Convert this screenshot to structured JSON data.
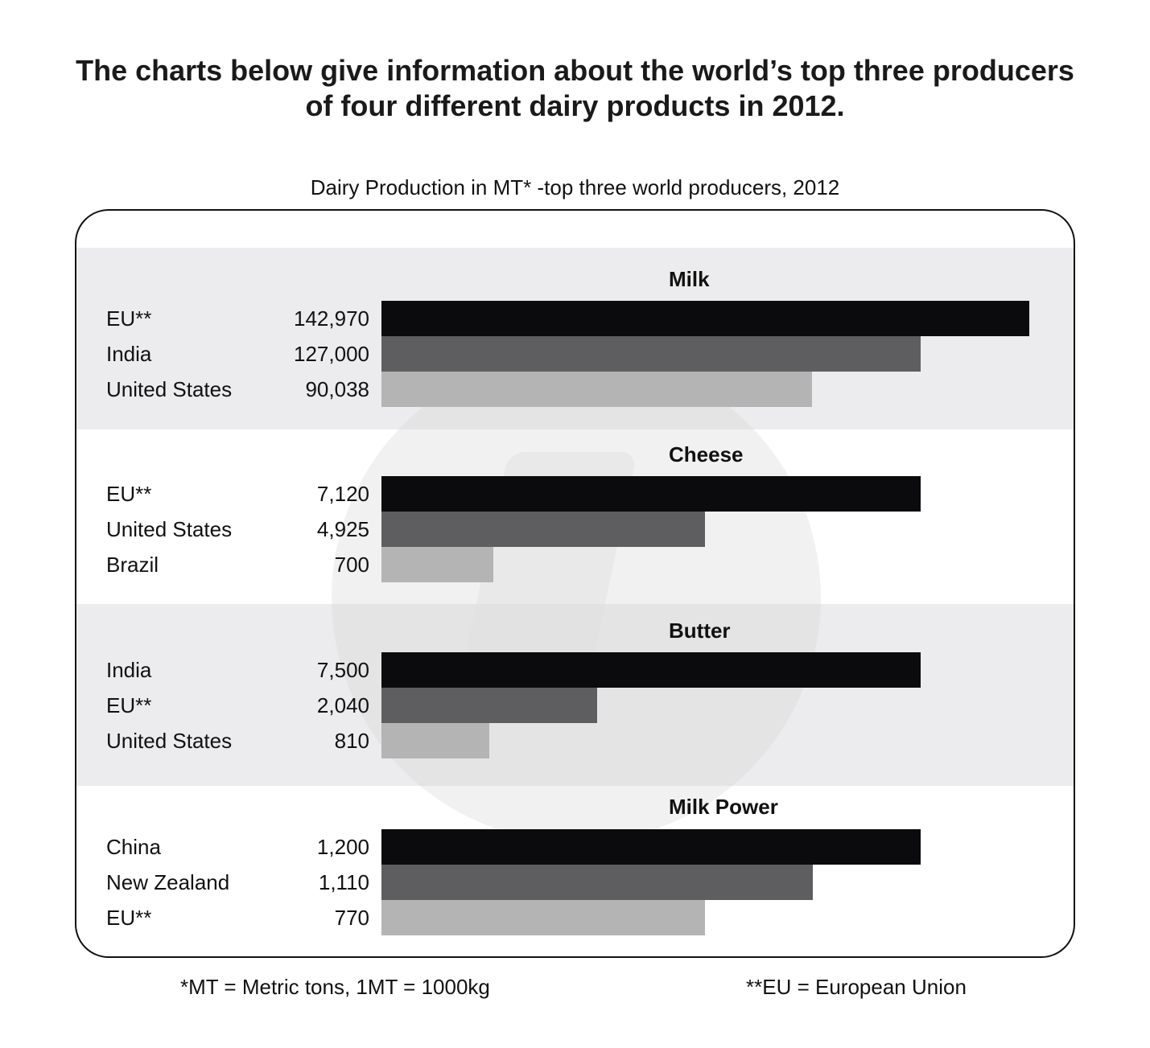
{
  "heading": {
    "line1": "The charts below give information about the world’s top three producers",
    "line2": "of four different dairy products in 2012."
  },
  "chart_data": {
    "type": "bar",
    "orientation": "horizontal",
    "title": "Dairy Production in MT* -top three world producers, 2012",
    "colors": [
      "#0b0b0d",
      "#5e5e60",
      "#b4b4b4"
    ],
    "panels": [
      {
        "title": "Milk",
        "categories": [
          "EU**",
          "India",
          "United States"
        ],
        "labels": [
          "142,970",
          "127,000",
          "90,038"
        ],
        "values": [
          142970,
          127000,
          90038
        ]
      },
      {
        "title": "Cheese",
        "categories": [
          "EU**",
          "United States",
          "Brazil"
        ],
        "labels": [
          "7,120",
          "4,925",
          "700"
        ],
        "values": [
          7120,
          4925,
          700
        ]
      },
      {
        "title": "Butter",
        "categories": [
          "India",
          "EU**",
          "United States"
        ],
        "labels": [
          "7,500",
          "2,040",
          "810"
        ],
        "values": [
          7500,
          2040,
          810
        ]
      },
      {
        "title": "Milk Power",
        "categories": [
          "China",
          "New Zealand",
          "EU**"
        ],
        "labels": [
          "1,200",
          "1,110",
          "770"
        ],
        "values": [
          1200,
          1110,
          770
        ]
      }
    ],
    "bar_fractions": [
      [
        1.0,
        0.832,
        0.665
      ],
      [
        1.0,
        0.6,
        0.208
      ],
      [
        1.0,
        0.4,
        0.2
      ],
      [
        1.0,
        0.8,
        0.6
      ]
    ]
  },
  "footnotes": {
    "mt": "*MT = Metric tons, 1MT = 1000kg",
    "eu": "**EU = European Union"
  }
}
